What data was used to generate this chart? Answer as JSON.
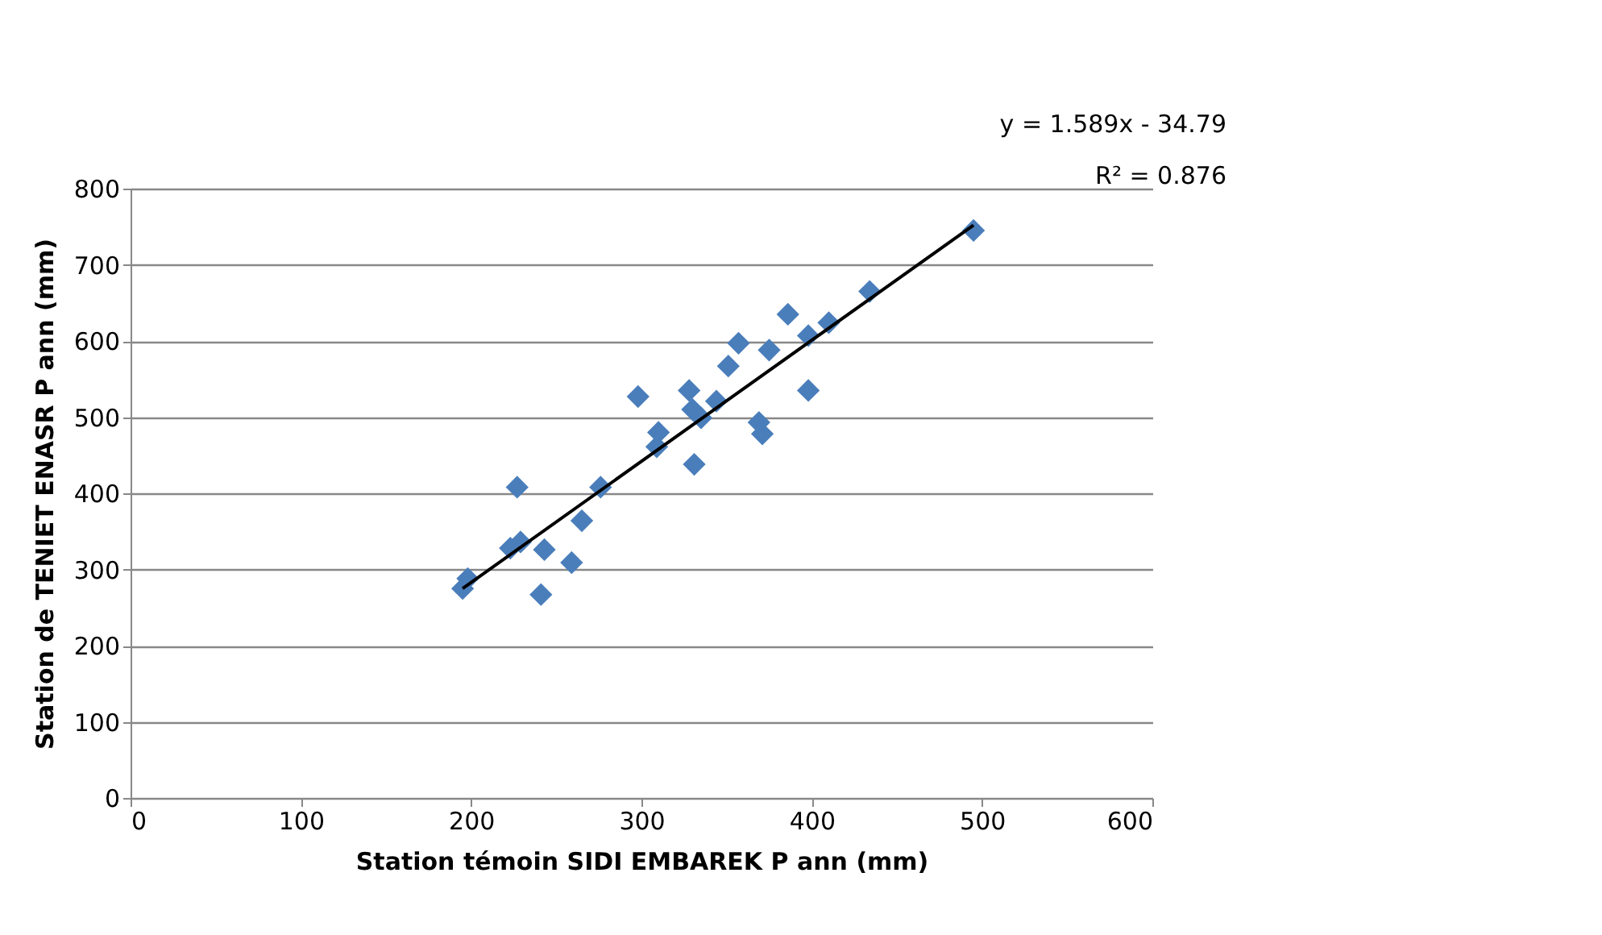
{
  "chart_data": {
    "type": "scatter",
    "xlabel": "Station témoin SIDI EMBAREK P ann (mm)",
    "ylabel": "Station de TENIET ENASR P ann (mm)",
    "annotations": [
      "y = 1.589x - 34.79",
      "R² = 0.876"
    ],
    "xlim": [
      0,
      600
    ],
    "xticks": [
      0,
      100,
      200,
      300,
      400,
      500,
      600
    ],
    "ylim": [
      0,
      800
    ],
    "yticks": [
      0,
      100,
      200,
      300,
      400,
      500,
      600,
      700,
      800
    ],
    "grid": "y",
    "marker": "diamond",
    "legend": false,
    "series": [
      {
        "type": "scatter",
        "color": "#4a7ebb",
        "x": [
          195,
          198,
          227,
          223,
          229,
          243,
          241,
          259,
          265,
          276,
          298,
          309,
          310,
          328,
          330,
          335,
          344,
          331,
          351,
          357,
          375,
          386,
          398,
          410,
          398,
          369,
          371,
          434,
          495
        ],
        "values": [
          275,
          288,
          408,
          328,
          336,
          326,
          267,
          309,
          364,
          408,
          527,
          461,
          480,
          535,
          510,
          499,
          521,
          438,
          567,
          597,
          588,
          635,
          607,
          624,
          535,
          493,
          478,
          665,
          745
        ]
      },
      {
        "type": "line",
        "color": "#000000",
        "x": [
          195,
          495
        ],
        "values": [
          275,
          752
        ],
        "marker": "none",
        "line_style": "solid"
      }
    ]
  }
}
